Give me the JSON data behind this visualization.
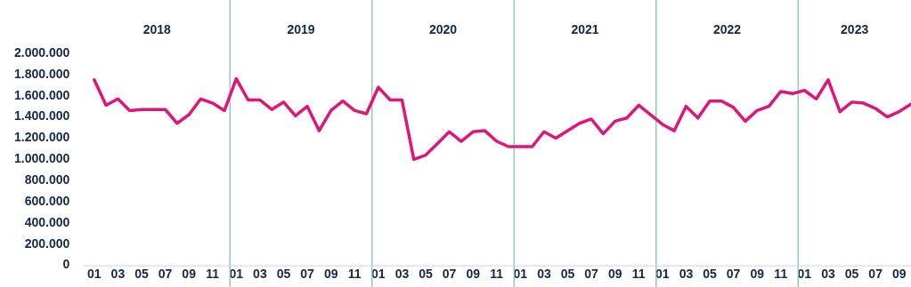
{
  "chart_data": {
    "type": "line",
    "x": [
      "2018-01",
      "2018-02",
      "2018-03",
      "2018-04",
      "2018-05",
      "2018-06",
      "2018-07",
      "2018-08",
      "2018-09",
      "2018-10",
      "2018-11",
      "2018-12",
      "2019-01",
      "2019-02",
      "2019-03",
      "2019-04",
      "2019-05",
      "2019-06",
      "2019-07",
      "2019-08",
      "2019-09",
      "2019-10",
      "2019-11",
      "2019-12",
      "2020-01",
      "2020-02",
      "2020-03",
      "2020-04",
      "2020-05",
      "2020-06",
      "2020-07",
      "2020-08",
      "2020-09",
      "2020-10",
      "2020-11",
      "2020-12",
      "2021-01",
      "2021-02",
      "2021-03",
      "2021-04",
      "2021-05",
      "2021-06",
      "2021-07",
      "2021-08",
      "2021-09",
      "2021-10",
      "2021-11",
      "2021-12",
      "2022-01",
      "2022-02",
      "2022-03",
      "2022-04",
      "2022-05",
      "2022-06",
      "2022-07",
      "2022-08",
      "2022-09",
      "2022-10",
      "2022-11",
      "2022-12",
      "2023-01",
      "2023-02",
      "2023-03",
      "2023-04",
      "2023-05",
      "2023-06",
      "2023-07",
      "2023-08",
      "2023-09",
      "2023-10"
    ],
    "series": [
      {
        "color": "#e0157a",
        "values": [
          1750000,
          1510000,
          1570000,
          1460000,
          1470000,
          1470000,
          1470000,
          1340000,
          1420000,
          1570000,
          1530000,
          1460000,
          1760000,
          1560000,
          1560000,
          1470000,
          1540000,
          1410000,
          1500000,
          1270000,
          1460000,
          1550000,
          1460000,
          1430000,
          1680000,
          1560000,
          1560000,
          1000000,
          1040000,
          1150000,
          1260000,
          1170000,
          1260000,
          1270000,
          1170000,
          1120000,
          1120000,
          1120000,
          1260000,
          1200000,
          1270000,
          1340000,
          1380000,
          1240000,
          1360000,
          1390000,
          1510000,
          1420000,
          1330000,
          1270000,
          1500000,
          1390000,
          1550000,
          1550000,
          1490000,
          1360000,
          1460000,
          1500000,
          1640000,
          1620000,
          1650000,
          1570000,
          1750000,
          1450000,
          1540000,
          1530000,
          1480000,
          1400000,
          1450000,
          1520000
        ]
      }
    ],
    "xlim": [
      "2017-12-05",
      "2023-10"
    ],
    "xticks": [
      {
        "value": "2018-01",
        "label": "01"
      },
      {
        "value": "2018-03",
        "label": "03"
      },
      {
        "value": "2018-05",
        "label": "05"
      },
      {
        "value": "2018-07",
        "label": "07"
      },
      {
        "value": "2018-09",
        "label": "09"
      },
      {
        "value": "2018-11",
        "label": "11"
      },
      {
        "value": "2019-01",
        "label": "01"
      },
      {
        "value": "2019-03",
        "label": "03"
      },
      {
        "value": "2019-05",
        "label": "05"
      },
      {
        "value": "2019-07",
        "label": "07"
      },
      {
        "value": "2019-09",
        "label": "09"
      },
      {
        "value": "2019-11",
        "label": "11"
      },
      {
        "value": "2020-01",
        "label": "01"
      },
      {
        "value": "2020-03",
        "label": "03"
      },
      {
        "value": "2020-05",
        "label": "05"
      },
      {
        "value": "2020-07",
        "label": "07"
      },
      {
        "value": "2020-09",
        "label": "09"
      },
      {
        "value": "2020-11",
        "label": "11"
      },
      {
        "value": "2021-01",
        "label": "01"
      },
      {
        "value": "2021-03",
        "label": "03"
      },
      {
        "value": "2021-05",
        "label": "05"
      },
      {
        "value": "2021-07",
        "label": "07"
      },
      {
        "value": "2021-09",
        "label": "09"
      },
      {
        "value": "2021-11",
        "label": "11"
      },
      {
        "value": "2022-01",
        "label": "01"
      },
      {
        "value": "2022-03",
        "label": "03"
      },
      {
        "value": "2022-05",
        "label": "05"
      },
      {
        "value": "2022-07",
        "label": "07"
      },
      {
        "value": "2022-09",
        "label": "09"
      },
      {
        "value": "2022-11",
        "label": "11"
      },
      {
        "value": "2023-01",
        "label": "01"
      },
      {
        "value": "2023-03",
        "label": "03"
      },
      {
        "value": "2023-05",
        "label": "05"
      },
      {
        "value": "2023-07",
        "label": "07"
      },
      {
        "value": "2023-09",
        "label": "09"
      }
    ],
    "annotations": [
      "2018",
      "2019",
      "2020",
      "2021",
      "2022",
      "2023"
    ],
    "ylim": [
      0,
      2000000
    ],
    "yticks": [
      0,
      {
        "value": 200000,
        "label": "200.000"
      },
      {
        "value": 400000,
        "label": "400.000"
      },
      {
        "value": 600000,
        "label": "600.000"
      },
      {
        "value": 800000,
        "label": "800.000"
      },
      {
        "value": 1000000,
        "label": "1.000.000"
      },
      {
        "value": 1200000,
        "label": "1.200.000"
      },
      {
        "value": 1400000,
        "label": "1.400.000"
      },
      {
        "value": 1600000,
        "label": "1.600.000"
      },
      {
        "value": 1800000,
        "label": "1.800.000"
      },
      {
        "value": 2000000,
        "label": "2.000.000"
      }
    ],
    "ref_lines": [
      {
        "axis": "x",
        "value": "2018-12-15",
        "color": "#8fcbb5"
      },
      {
        "axis": "x",
        "value": "2019-12-15",
        "color": "#8fcbb5"
      },
      {
        "axis": "x",
        "value": "2020-12-15",
        "color": "#8fcbb5"
      },
      {
        "axis": "x",
        "value": "2021-12-15",
        "color": "#8fcbb5"
      },
      {
        "axis": "x",
        "value": "2022-12-15",
        "color": "#8fcbb5"
      }
    ],
    "grid": false,
    "legend": false,
    "marker": "none",
    "line_style": "solid"
  }
}
